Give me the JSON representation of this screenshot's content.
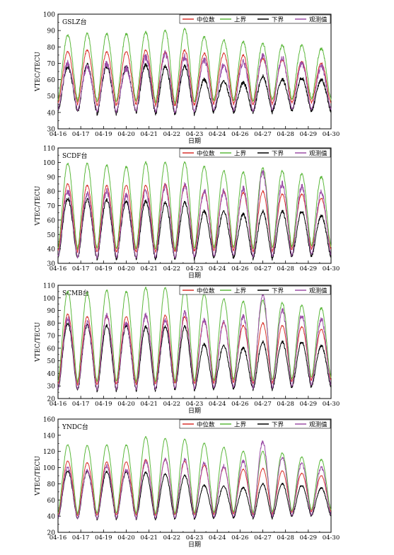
{
  "figure": {
    "xlabel": "日期",
    "ylabel": "VTEC/TECU",
    "x_ticks": [
      "04-16",
      "04-17",
      "04-19",
      "04-20",
      "04-21",
      "04-22",
      "04-23",
      "04-24",
      "04-26",
      "04-27",
      "04-28",
      "04-29",
      "04-30"
    ],
    "legend": [
      "中位数",
      "上界",
      "下界",
      "观测值"
    ],
    "colors": {
      "median": "#d9312b",
      "upper": "#5cb83c",
      "lower": "#000000",
      "observed": "#9b4ea6"
    }
  },
  "chart_data": [
    {
      "type": "line",
      "station": "GSLZ台",
      "ylim": [
        30,
        100
      ],
      "yticks": [
        30,
        40,
        50,
        60,
        70,
        80,
        90,
        100
      ],
      "days": 14,
      "series": [
        {
          "name": "中位数",
          "peaks": [
            77,
            78,
            77,
            77,
            78,
            77,
            78,
            76,
            76,
            75,
            73,
            72,
            71,
            70
          ]
        },
        {
          "name": "上界",
          "peaks": [
            87,
            88,
            88,
            88,
            89,
            90,
            91,
            86,
            84,
            83,
            82,
            81,
            81,
            79
          ]
        },
        {
          "name": "下界",
          "peaks": [
            68,
            69,
            68,
            68,
            69,
            68,
            68,
            60,
            59,
            58,
            62,
            60,
            61,
            60
          ]
        },
        {
          "name": "观测值",
          "peaks": [
            70,
            68,
            70,
            67,
            74,
            76,
            74,
            72,
            69,
            71,
            75,
            73,
            70,
            68
          ]
        }
      ],
      "trough": [
        42,
        41,
        40,
        41,
        41,
        40,
        40,
        41,
        42,
        41,
        41,
        42,
        42,
        42
      ]
    },
    {
      "type": "line",
      "station": "SCDF台",
      "ylim": [
        30,
        110
      ],
      "yticks": [
        30,
        40,
        50,
        60,
        70,
        80,
        90,
        100,
        110
      ],
      "days": 14,
      "series": [
        {
          "name": "中位数",
          "peaks": [
            85,
            84,
            84,
            84,
            84,
            85,
            84,
            80,
            80,
            79,
            80,
            78,
            78,
            75
          ]
        },
        {
          "name": "上界",
          "peaks": [
            99,
            99,
            98,
            97,
            100,
            100,
            100,
            97,
            94,
            93,
            96,
            94,
            92,
            90
          ]
        },
        {
          "name": "下界",
          "peaks": [
            75,
            74,
            74,
            73,
            73,
            72,
            72,
            66,
            66,
            64,
            66,
            66,
            66,
            63
          ]
        },
        {
          "name": "观测值",
          "peaks": [
            80,
            78,
            80,
            77,
            80,
            83,
            84,
            80,
            80,
            82,
            93,
            85,
            83,
            79
          ]
        }
      ],
      "trough": [
        35,
        34,
        34,
        34,
        34,
        34,
        34,
        35,
        35,
        35,
        34,
        35,
        36,
        36
      ]
    },
    {
      "type": "line",
      "station": "SCMB台",
      "ylim": [
        20,
        110
      ],
      "yticks": [
        20,
        30,
        40,
        50,
        60,
        70,
        80,
        90,
        100,
        110
      ],
      "days": 14,
      "series": [
        {
          "name": "中位数",
          "peaks": [
            87,
            85,
            86,
            85,
            86,
            86,
            85,
            82,
            80,
            78,
            80,
            78,
            77,
            75
          ]
        },
        {
          "name": "上界",
          "peaks": [
            105,
            104,
            106,
            105,
            108,
            108,
            107,
            103,
            99,
            97,
            98,
            96,
            94,
            92
          ]
        },
        {
          "name": "下界",
          "peaks": [
            80,
            78,
            78,
            78,
            77,
            77,
            77,
            63,
            62,
            60,
            65,
            65,
            65,
            62
          ]
        },
        {
          "name": "观测值",
          "peaks": [
            84,
            80,
            86,
            80,
            86,
            82,
            88,
            82,
            81,
            85,
            103,
            90,
            86,
            83
          ]
        }
      ],
      "trough": [
        28,
        27,
        27,
        28,
        27,
        28,
        28,
        28,
        29,
        29,
        28,
        29,
        30,
        31
      ]
    },
    {
      "type": "line",
      "station": "YNDC台",
      "ylim": [
        20,
        160
      ],
      "yticks": [
        20,
        40,
        60,
        80,
        100,
        120,
        140,
        160
      ],
      "days": 14,
      "series": [
        {
          "name": "中位数",
          "peaks": [
            108,
            106,
            107,
            107,
            110,
            110,
            108,
            103,
            100,
            98,
            99,
            96,
            93,
            90
          ]
        },
        {
          "name": "上界",
          "peaks": [
            128,
            127,
            128,
            128,
            138,
            136,
            135,
            130,
            125,
            120,
            120,
            118,
            113,
            110
          ]
        },
        {
          "name": "下界",
          "peaks": [
            96,
            95,
            95,
            95,
            94,
            92,
            90,
            78,
            77,
            75,
            80,
            80,
            78,
            75
          ]
        },
        {
          "name": "观测值",
          "peaks": [
            100,
            96,
            102,
            97,
            108,
            110,
            110,
            106,
            102,
            108,
            132,
            113,
            105,
            100
          ]
        }
      ],
      "trough": [
        38,
        37,
        37,
        38,
        37,
        37,
        38,
        38,
        39,
        39,
        38,
        40,
        41,
        42
      ]
    }
  ]
}
